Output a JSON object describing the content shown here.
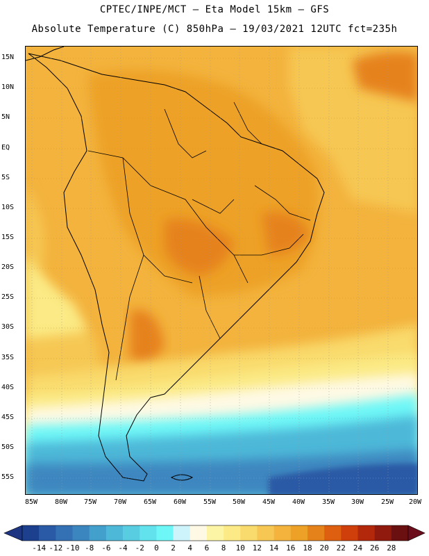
{
  "header": {
    "line1": "CPTEC/INPE/MCT –  Eta Model 15km – GFS",
    "line2": "Absolute Temperature (C) 850hPa – 19/03/2021 12UTC fct=235h"
  },
  "map": {
    "lat_labels": [
      "15N",
      "10N",
      "5N",
      "EQ",
      "5S",
      "10S",
      "15S",
      "20S",
      "25S",
      "30S",
      "35S",
      "40S",
      "45S",
      "50S",
      "55S"
    ],
    "lon_labels": [
      "85W",
      "80W",
      "75W",
      "70W",
      "65W",
      "60W",
      "55W",
      "50W",
      "45W",
      "40W",
      "35W",
      "30W",
      "25W",
      "20W"
    ]
  },
  "colorbar": {
    "ticks": [
      "-14",
      "-12",
      "-10",
      "-8",
      "-6",
      "-4",
      "-2",
      "0",
      "2",
      "4",
      "6",
      "8",
      "10",
      "12",
      "14",
      "16",
      "18",
      "20",
      "22",
      "24",
      "26",
      "28"
    ],
    "colors": [
      "#1c3f8e",
      "#2a5aa5",
      "#3470b4",
      "#3c86bf",
      "#43a0cc",
      "#4db8d8",
      "#58cde2",
      "#62e2ec",
      "#6ef7f7",
      "#cdf4fb",
      "#fef9e4",
      "#fdf5a6",
      "#fbea85",
      "#f9da6c",
      "#f6c753",
      "#f3b33d",
      "#eda127",
      "#e6821a",
      "#df5f10",
      "#cf3f0b",
      "#b3270b",
      "#8f1a0d",
      "#6b1010"
    ],
    "under_color": "#1e3582",
    "over_color": "#6b0d1a"
  }
}
